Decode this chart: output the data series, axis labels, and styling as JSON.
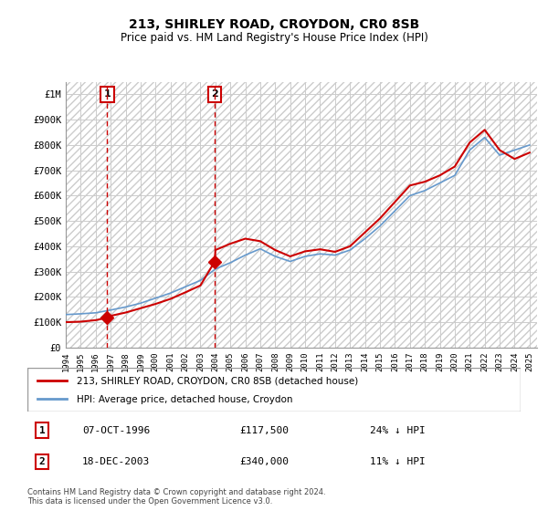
{
  "title": "213, SHIRLEY ROAD, CROYDON, CR0 8SB",
  "subtitle": "Price paid vs. HM Land Registry's House Price Index (HPI)",
  "sale1_date": "07-OCT-1996",
  "sale1_price": 117500,
  "sale1_hpi": "24% ↓ HPI",
  "sale1_label": "1",
  "sale2_date": "18-DEC-2003",
  "sale2_price": 340000,
  "sale2_hpi": "11% ↓ HPI",
  "sale2_label": "2",
  "legend_line1": "213, SHIRLEY ROAD, CROYDON, CR0 8SB (detached house)",
  "legend_line2": "HPI: Average price, detached house, Croydon",
  "footer": "Contains HM Land Registry data © Crown copyright and database right 2024.\nThis data is licensed under the Open Government Licence v3.0.",
  "price_line_color": "#cc0000",
  "hpi_line_color": "#6699cc",
  "sale_marker_color": "#cc0000",
  "dashed_line_color": "#cc0000",
  "background_hatch_color": "#dddddd",
  "grid_color": "#cccccc",
  "ylim": [
    0,
    1050000
  ],
  "yticks": [
    0,
    100000,
    200000,
    300000,
    400000,
    500000,
    600000,
    700000,
    800000,
    900000,
    1000000
  ],
  "ytick_labels": [
    "£0",
    "£100K",
    "£200K",
    "£300K",
    "£400K",
    "£500K",
    "£600K",
    "£700K",
    "£800K",
    "£900K",
    "£1M"
  ],
  "xmin": 1994.0,
  "xmax": 2025.5,
  "sale1_x": 1996.77,
  "sale2_x": 2003.96,
  "hpi_years": [
    1994,
    1995,
    1996,
    1997,
    1998,
    1999,
    2000,
    2001,
    2002,
    2003,
    2004,
    2005,
    2006,
    2007,
    2008,
    2009,
    2010,
    2011,
    2012,
    2013,
    2014,
    2015,
    2016,
    2017,
    2018,
    2019,
    2020,
    2021,
    2022,
    2023,
    2024,
    2025
  ],
  "hpi_values": [
    130000,
    133000,
    137000,
    148000,
    160000,
    175000,
    195000,
    215000,
    240000,
    265000,
    310000,
    335000,
    365000,
    390000,
    360000,
    340000,
    360000,
    370000,
    365000,
    385000,
    430000,
    480000,
    540000,
    600000,
    620000,
    650000,
    680000,
    780000,
    830000,
    760000,
    780000,
    800000
  ],
  "price_years": [
    1994,
    1995,
    1996,
    1996.77,
    1997,
    1998,
    1999,
    2000,
    2001,
    2002,
    2003,
    2003.96,
    2004,
    2005,
    2006,
    2007,
    2008,
    2009,
    2010,
    2011,
    2012,
    2013,
    2014,
    2015,
    2016,
    2017,
    2018,
    2019,
    2020,
    2021,
    2022,
    2023,
    2024,
    2025
  ],
  "price_values": [
    100000,
    102000,
    108000,
    117500,
    125000,
    138000,
    155000,
    172000,
    192000,
    218000,
    245000,
    340000,
    385000,
    410000,
    430000,
    420000,
    385000,
    360000,
    380000,
    388000,
    378000,
    400000,
    455000,
    510000,
    575000,
    640000,
    655000,
    680000,
    715000,
    810000,
    860000,
    780000,
    745000,
    770000
  ]
}
